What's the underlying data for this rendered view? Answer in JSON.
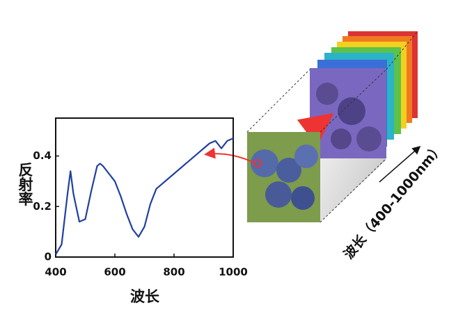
{
  "chart_data": {
    "type": "line",
    "xlabel": "波长",
    "ylabel": "反射率",
    "cube_label": "波长（400-1000nm）",
    "x": [
      400,
      420,
      440,
      450,
      460,
      480,
      500,
      520,
      540,
      550,
      560,
      580,
      600,
      620,
      640,
      660,
      680,
      700,
      720,
      740,
      760,
      780,
      800,
      820,
      840,
      860,
      880,
      900,
      920,
      940,
      960,
      980,
      1000
    ],
    "values": [
      0.01,
      0.05,
      0.25,
      0.34,
      0.25,
      0.14,
      0.15,
      0.26,
      0.36,
      0.37,
      0.36,
      0.33,
      0.3,
      0.24,
      0.17,
      0.11,
      0.08,
      0.12,
      0.21,
      0.27,
      0.29,
      0.31,
      0.33,
      0.35,
      0.37,
      0.39,
      0.41,
      0.43,
      0.45,
      0.46,
      0.43,
      0.46,
      0.47
    ],
    "color": "#1f3fa0",
    "xlim": [
      400,
      1000
    ],
    "ylim": [
      0,
      0.55
    ],
    "xticks": [
      400,
      600,
      800,
      1000
    ],
    "yticks": [
      0,
      0.2,
      0.4
    ]
  }
}
